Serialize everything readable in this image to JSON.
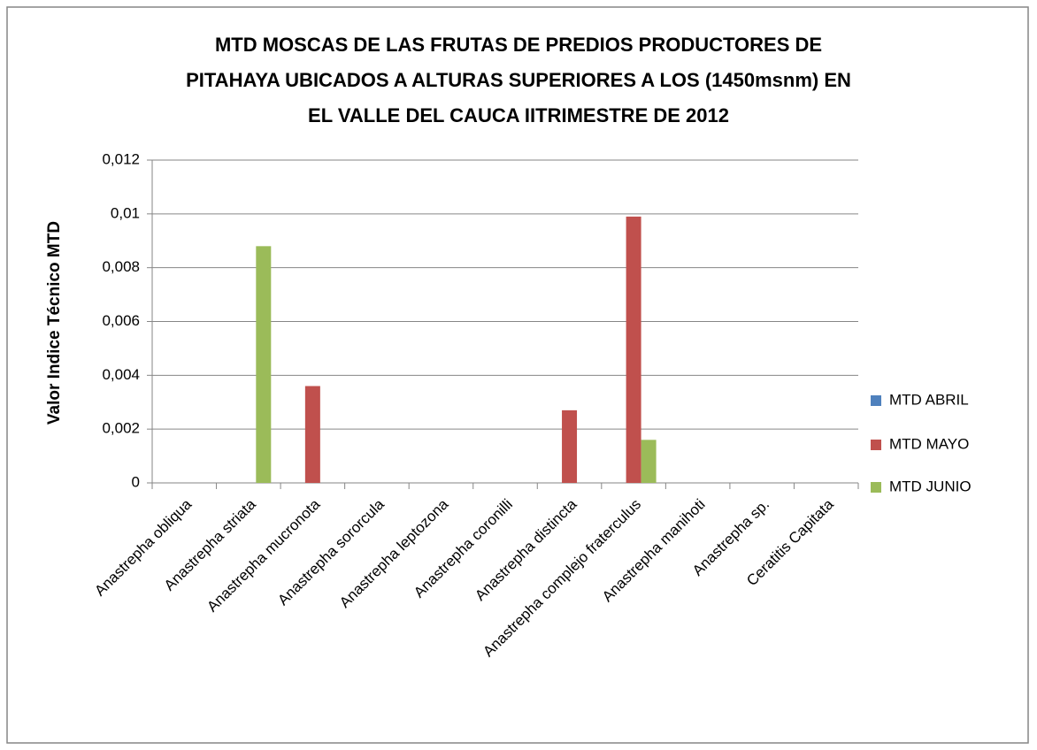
{
  "chart_data": {
    "type": "bar",
    "title": [
      "MTD MOSCAS DE LAS FRUTAS DE PREDIOS PRODUCTORES DE",
      "PITAHAYA UBICADOS A ALTURAS SUPERIORES A LOS (1450msnm) EN",
      "EL VALLE DEL CAUCA IITRIMESTRE DE 2012"
    ],
    "y_label": "Valor Indice Técnico MTD",
    "categories": [
      "Anastrepha obliqua",
      "Anastrepha striata",
      "Anastrepha mucronota",
      "Anastrepha sororcula",
      "Anastrepha leptozona",
      "Anastrepha coronilli",
      "Anastrepha distincta",
      "Anastrepha complejo fraterculus",
      "Anastrepha manihoti",
      "Anastrepha sp.",
      "Ceratitis Capitata"
    ],
    "series": [
      {
        "name": "MTD ABRIL",
        "color": "#4f81bd",
        "values": [
          0,
          0,
          0,
          0,
          0,
          0,
          0,
          0,
          0,
          0,
          0
        ]
      },
      {
        "name": "MTD MAYO",
        "color": "#c0504d",
        "values": [
          0,
          0,
          0.0036,
          0,
          0,
          0,
          0.0027,
          0.0099,
          0,
          0,
          0
        ]
      },
      {
        "name": "MTD JUNIO",
        "color": "#9bbb59",
        "values": [
          0,
          0.0088,
          0,
          0,
          0,
          0,
          0,
          0.0016,
          0,
          0,
          0
        ]
      }
    ],
    "ylim": [
      0,
      0.012
    ],
    "yticks": [
      0,
      {
        "value": 0.002,
        "label": "0,002"
      },
      {
        "value": 0.004,
        "label": "0,004"
      },
      {
        "value": 0.006,
        "label": "0,006"
      },
      {
        "value": 0.008,
        "label": "0,008"
      },
      {
        "value": 0.01,
        "label": "0,01"
      },
      {
        "value": 0.012,
        "label": "0,012"
      }
    ],
    "grid": true,
    "legend": "right"
  }
}
